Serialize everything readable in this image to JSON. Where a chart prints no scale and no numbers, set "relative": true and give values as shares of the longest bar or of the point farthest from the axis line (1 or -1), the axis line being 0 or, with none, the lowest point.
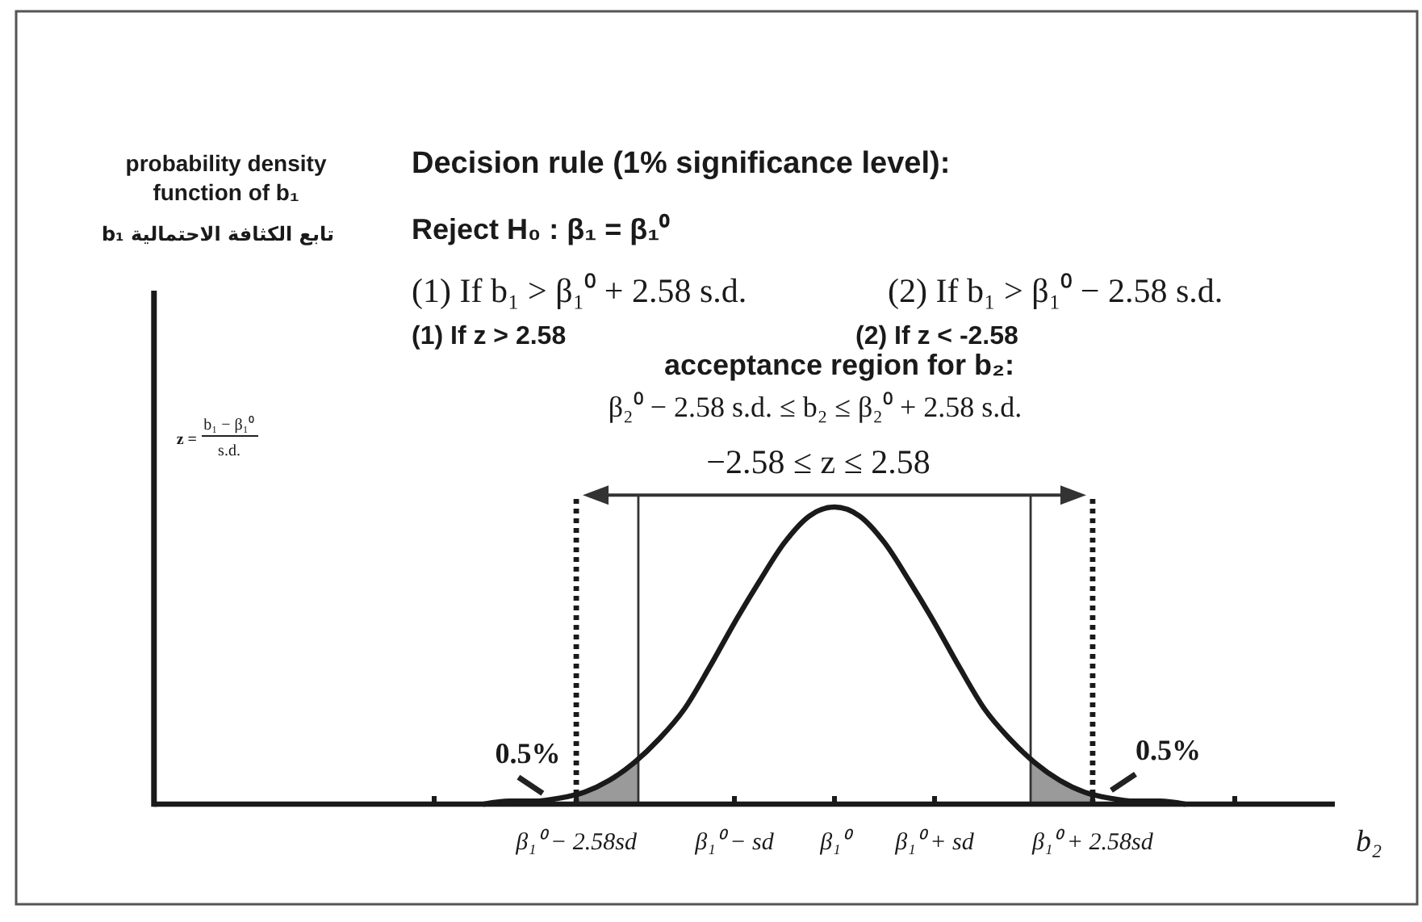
{
  "chart_data": {
    "type": "line",
    "title": "Decision rule (1% significance level):",
    "xlabel": "b₂",
    "relative": true,
    "line_style": "solid",
    "xlim": [
      -6.8,
      5
    ],
    "xticks": [
      {
        "value": -4,
        "label": null
      },
      {
        "value": -2.58,
        "label": "β₁⁰ − 2.58sd"
      },
      {
        "value": -1,
        "label": "β₁⁰ − sd"
      },
      {
        "value": 0,
        "label": "β₁⁰"
      },
      {
        "value": 1,
        "label": "β₁⁰ + sd"
      },
      {
        "value": 2.58,
        "label": "β₁⁰ + 2.58sd"
      },
      {
        "value": 4,
        "label": null
      }
    ],
    "series": [
      {
        "type": "area",
        "color": "#9a9a9a",
        "x": [
          -2.58,
          -2.25,
          -1.96
        ],
        "values": [
          0.04,
          0.08,
          0.15
        ]
      },
      {
        "type": "area",
        "color": "#9a9a9a",
        "x": [
          1.96,
          2.25,
          2.58
        ],
        "values": [
          0.15,
          0.08,
          0.04
        ]
      },
      {
        "color": "#1a1a1a",
        "x": [
          -3.5,
          -3.25,
          -3,
          -2.75,
          -2.5,
          -2.25,
          -2,
          -1.75,
          -1.5,
          -1.25,
          -1,
          -0.75,
          -0.5,
          -0.25,
          0,
          0.25,
          0.5,
          0.75,
          1,
          1.25,
          1.5,
          1.75,
          2,
          2.25,
          2.5,
          2.75,
          3,
          3.25,
          3.5
        ],
        "values": [
          0,
          0.01,
          0.01,
          0.02,
          0.04,
          0.08,
          0.14,
          0.22,
          0.32,
          0.46,
          0.61,
          0.75,
          0.88,
          0.97,
          1,
          0.97,
          0.88,
          0.75,
          0.61,
          0.46,
          0.32,
          0.22,
          0.14,
          0.08,
          0.04,
          0.02,
          0.01,
          0.01,
          0
        ]
      }
    ],
    "ref_lines": [
      {
        "axis": "x",
        "value": -2.58,
        "line_style": "dotted",
        "color": "#1a1a1a"
      },
      {
        "axis": "x",
        "value": 2.58,
        "line_style": "dotted",
        "color": "#1a1a1a"
      },
      {
        "axis": "x",
        "value": -1.96,
        "line_style": "solid",
        "color": "#333333"
      },
      {
        "axis": "x",
        "value": 1.96,
        "line_style": "solid",
        "color": "#333333"
      }
    ],
    "annotations": [
      "probability density function of b₁",
      "b₁ تابع الكثافة الاحتمالية",
      "Reject H₀ : β₁ = β₁⁰",
      "(1) If b₁ > β₁⁰ + 2.58 s.d.",
      "(2) If b₁ > β₁⁰ − 2.58 s.d.",
      "(1) If z > 2.58",
      "(2) If z < -2.58",
      "acceptance region for b₂:",
      "β₂⁰ − 2.58 s.d. ≤ b₂ ≤ β₂⁰ + 2.58 s.d.",
      "−2.58 ≤ z ≤ 2.58",
      "z =",
      "b₁ − β₁⁰",
      "s.d.",
      {
        "text": "0.5%",
        "x": -2.9,
        "y": 0.02
      },
      {
        "text": "0.5%",
        "x": 2.75,
        "y": 0.03
      }
    ]
  }
}
